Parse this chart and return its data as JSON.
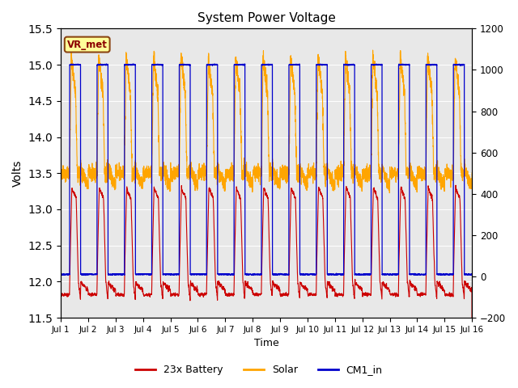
{
  "title": "System Power Voltage",
  "xlabel": "Time",
  "ylabel": "Volts",
  "ylim_left": [
    11.5,
    15.5
  ],
  "ylim_right": [
    -200,
    1200
  ],
  "yticks_left": [
    11.5,
    12.0,
    12.5,
    13.0,
    13.5,
    14.0,
    14.5,
    15.0,
    15.5
  ],
  "yticks_right": [
    -200,
    0,
    200,
    400,
    600,
    800,
    1000,
    1200
  ],
  "xtick_labels": [
    "Jul 1",
    "Jul 2",
    "Jul 3",
    "Jul 4",
    "Jul 5",
    "Jul 6",
    "Jul 7",
    "Jul 8",
    "Jul 9",
    "Jul 10",
    "Jul 11",
    "Jul 12",
    "Jul 13",
    "Jul 14",
    "Jul 15",
    "Jul 16"
  ],
  "annotation_text": "VR_met",
  "annotation_box_facecolor": "#FFFF99",
  "annotation_box_edgecolor": "#8B4513",
  "color_battery": "#CC0000",
  "color_solar": "#FFA500",
  "color_cm1": "#0000CC",
  "legend_labels": [
    "23x Battery",
    "Solar",
    "CM1_in"
  ],
  "background_color": "#E8E8E8",
  "n_days": 15,
  "ppd": 288,
  "day_start": 0.32,
  "day_end": 0.72
}
